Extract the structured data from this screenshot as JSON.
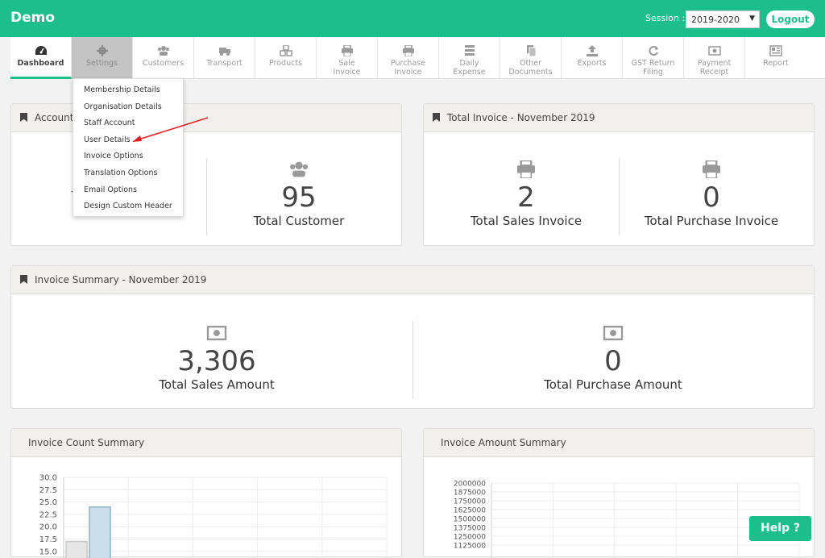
{
  "app": {
    "title": "Demo"
  },
  "session": {
    "label": "Session :",
    "value": "2019-2020"
  },
  "logout_label": "Logout",
  "nav": [
    {
      "label": "Dashboard",
      "icon": "dashboard-icon"
    },
    {
      "label": "Settings",
      "icon": "gear-icon"
    },
    {
      "label": "Customers",
      "icon": "users-icon"
    },
    {
      "label": "Transport",
      "icon": "truck-icon"
    },
    {
      "label": "Products",
      "icon": "cubes-icon"
    },
    {
      "label": "Sale Invoice",
      "icon": "printer-icon"
    },
    {
      "label": "Purchase Invoice",
      "icon": "printer-icon"
    },
    {
      "label": "Daily Expense",
      "icon": "list-icon"
    },
    {
      "label": "Other Documents",
      "icon": "documents-icon"
    },
    {
      "label": "Exports",
      "icon": "upload-icon"
    },
    {
      "label": "GST Return Filing",
      "icon": "refresh-icon"
    },
    {
      "label": "Payment Receipt",
      "icon": "money-icon"
    },
    {
      "label": "Report",
      "icon": "newspaper-icon"
    }
  ],
  "settings_menu": [
    "Membership Details",
    "Organisation Details",
    "Staff Account",
    "User Details",
    "Invoice Options",
    "Translation Options",
    "Email Options",
    "Design Custom Header"
  ],
  "account_panel": {
    "title": "Account",
    "stats": [
      {
        "value": "",
        "caption": "Total Products"
      },
      {
        "value": "95",
        "caption": "Total Customer"
      }
    ]
  },
  "invoice_panel": {
    "title": "Total Invoice - November 2019",
    "stats": [
      {
        "value": "2",
        "caption": "Total Sales Invoice"
      },
      {
        "value": "0",
        "caption": "Total Purchase Invoice"
      }
    ]
  },
  "summary_panel": {
    "title": "Invoice Summary - November 2019",
    "stats": [
      {
        "value": "3,306",
        "caption": "Total Sales Amount"
      },
      {
        "value": "0",
        "caption": "Total Purchase Amount"
      }
    ]
  },
  "count_chart_title": "Invoice Count Summary",
  "amount_chart_title": "Invoice Amount Summary",
  "chart_data": [
    {
      "type": "bar",
      "title": "Invoice Count Summary",
      "yticks": [
        "30.0",
        "27.5",
        "25.0",
        "22.5",
        "20.0",
        "17.5",
        "15.0"
      ],
      "ylim": [
        15.0,
        30.0
      ],
      "visible_bars": [
        {
          "value": 17,
          "color": "#e6e6e6"
        },
        {
          "value": 24,
          "color": "#c9dfea"
        }
      ],
      "grid": true
    },
    {
      "type": "bar",
      "title": "Invoice Amount Summary",
      "yticks": [
        "2000000",
        "1875000",
        "1750000",
        "1625000",
        "1500000",
        "1375000",
        "1250000",
        "1125000"
      ],
      "ylim": [
        1125000,
        2000000
      ],
      "grid": true
    }
  ],
  "help_label": "Help ?"
}
